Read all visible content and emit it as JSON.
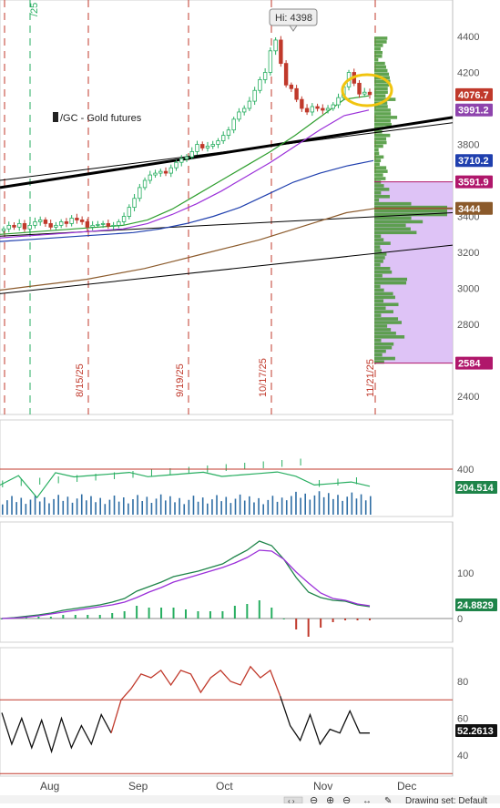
{
  "chart_data": [
    {
      "type": "candlestick",
      "symbol_label": "/GC - Gold futures",
      "hi_label": "Hi: 4398",
      "y_ticks": [
        2400,
        2600,
        2800,
        3000,
        3200,
        3400,
        3600,
        3800,
        4000,
        4200,
        4400
      ],
      "ylim": [
        2300,
        4500
      ],
      "date_markers": [
        "8/15/25",
        "9/19/25",
        "10/17/25",
        "11/21/25"
      ],
      "top_left_fragment": "/25",
      "price_tags": [
        {
          "value": 4076.7,
          "label": "4076.7",
          "color": "#c0392b"
        },
        {
          "value": 3991.2,
          "label": "3991.2",
          "color": "#8e44ad"
        },
        {
          "value": 3710.2,
          "label": "3710.2",
          "color": "#1f3fae"
        },
        {
          "value": 3591.9,
          "label": "3591.9",
          "color": "#b0176b"
        },
        {
          "value": 3444,
          "label": "3444",
          "color": "#8b5a2b"
        },
        {
          "value": 2584,
          "label": "2584",
          "color": "#b0176b"
        }
      ],
      "closes": [
        3330,
        3350,
        3340,
        3360,
        3330,
        3350,
        3370,
        3380,
        3360,
        3340,
        3350,
        3370,
        3360,
        3390,
        3380,
        3370,
        3340,
        3350,
        3355,
        3360,
        3345,
        3350,
        3370,
        3400,
        3450,
        3500,
        3560,
        3600,
        3630,
        3640,
        3650,
        3640,
        3670,
        3700,
        3720,
        3730,
        3760,
        3800,
        3780,
        3790,
        3800,
        3820,
        3850,
        3880,
        3940,
        3980,
        4000,
        4040,
        4100,
        4160,
        4200,
        4320,
        4380,
        4250,
        4130,
        4110,
        4050,
        4000,
        3980,
        4010,
        4000,
        3990,
        4000,
        4020,
        4060,
        4120,
        4200,
        4140,
        4080,
        4090,
        4076.7
      ],
      "moving_averages": [
        {
          "color": "#2e9e2e",
          "values": [
            3300,
            3310,
            3320,
            3330,
            3340,
            3350,
            3380,
            3440,
            3520,
            3600,
            3680,
            3760,
            3850,
            3950,
            4050,
            4070
          ]
        },
        {
          "color": "#9b30d9",
          "values": [
            3280,
            3290,
            3300,
            3310,
            3320,
            3330,
            3360,
            3410,
            3470,
            3540,
            3620,
            3700,
            3790,
            3880,
            3960,
            3991
          ]
        },
        {
          "color": "#1f3fae",
          "values": [
            3260,
            3270,
            3280,
            3290,
            3300,
            3310,
            3330,
            3360,
            3400,
            3450,
            3520,
            3590,
            3640,
            3680,
            3710
          ]
        },
        {
          "color": "#8b5a2b",
          "values": [
            2990,
            3010,
            3030,
            3050,
            3080,
            3110,
            3150,
            3190,
            3230,
            3270,
            3320,
            3370,
            3420,
            3444
          ]
        }
      ],
      "trendlines": [
        {
          "from": [
            0,
            3600
          ],
          "to": [
            1,
            3920
          ],
          "color": "#000000"
        },
        {
          "from": [
            0,
            3290
          ],
          "to": [
            1,
            3420
          ],
          "color": "#000000"
        },
        {
          "from": [
            0,
            2970
          ],
          "to": [
            1,
            3240
          ],
          "color": "#000000"
        },
        {
          "from": [
            0,
            3560
          ],
          "to": [
            1,
            3950
          ],
          "color": "#000000",
          "thick": true
        }
      ]
    },
    {
      "type": "bar",
      "name": "volume",
      "y_ticks": [
        400
      ],
      "reference_value": 400,
      "last_label": "204.514",
      "ylim": [
        0,
        800
      ]
    },
    {
      "type": "line",
      "name": "macd",
      "y_ticks": [
        0,
        100
      ],
      "last_label": "24.8829",
      "macd": [
        0,
        2,
        5,
        8,
        12,
        18,
        22,
        26,
        30,
        36,
        44,
        60,
        70,
        80,
        92,
        98,
        104,
        112,
        120,
        136,
        150,
        170,
        160,
        130,
        90,
        58,
        46,
        40,
        38,
        30,
        26
      ],
      "signal": [
        0,
        1,
        3,
        6,
        10,
        14,
        18,
        22,
        26,
        30,
        36,
        46,
        58,
        68,
        80,
        88,
        96,
        104,
        112,
        122,
        134,
        150,
        148,
        130,
        102,
        78,
        56,
        44,
        40,
        32,
        28
      ],
      "ylim": [
        -40,
        180
      ]
    },
    {
      "type": "line",
      "name": "oscillator",
      "y_ticks": [
        40,
        60,
        80
      ],
      "overbought": 70,
      "oversold": 30,
      "last_label": "52.2613",
      "values": [
        63,
        46,
        60,
        44,
        59,
        42,
        60,
        44,
        56,
        46,
        62,
        52,
        70,
        76,
        84,
        82,
        86,
        78,
        86,
        84,
        74,
        82,
        86,
        80,
        78,
        88,
        82,
        86,
        72,
        56,
        48,
        62,
        46,
        54,
        52,
        64,
        52,
        52
      ],
      "ylim": [
        25,
        95
      ]
    }
  ],
  "x_axis": {
    "labels": [
      "Aug",
      "Sep",
      "Oct",
      "Nov",
      "Dec"
    ]
  },
  "status_bar": {
    "drawing_set_label": "Drawing set: Default"
  }
}
